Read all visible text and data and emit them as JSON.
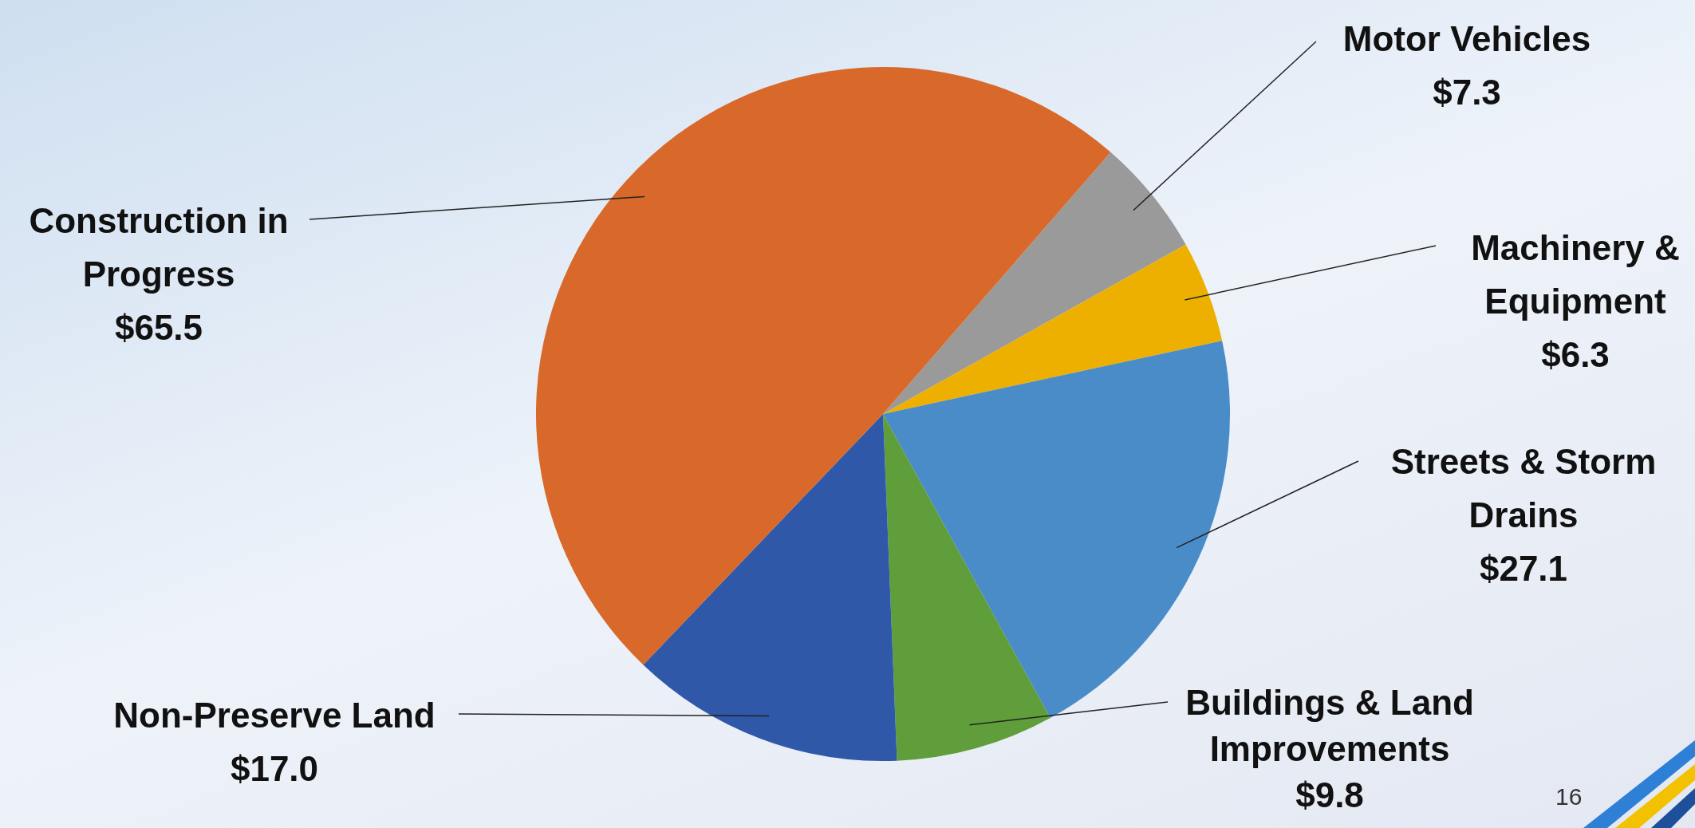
{
  "chart_data": {
    "type": "pie",
    "categories": [
      "Motor Vehicles",
      "Machinery & Equipment",
      "Streets & Storm Drains",
      "Buildings & Land Improvements",
      "Non-Preserve Land",
      "Construction in Progress"
    ],
    "values": [
      7.3,
      6.3,
      27.1,
      9.8,
      17.0,
      65.5
    ],
    "value_labels": [
      "$7.3",
      "$6.3",
      "$27.1",
      "$9.8",
      "$17.0",
      "$65.5"
    ],
    "colors": [
      "#9a9a9a",
      "#eeb000",
      "#4a8cc8",
      "#5f9e3a",
      "#3058a8",
      "#d8692a"
    ],
    "legend": false,
    "annotations": [
      "16"
    ]
  }
}
